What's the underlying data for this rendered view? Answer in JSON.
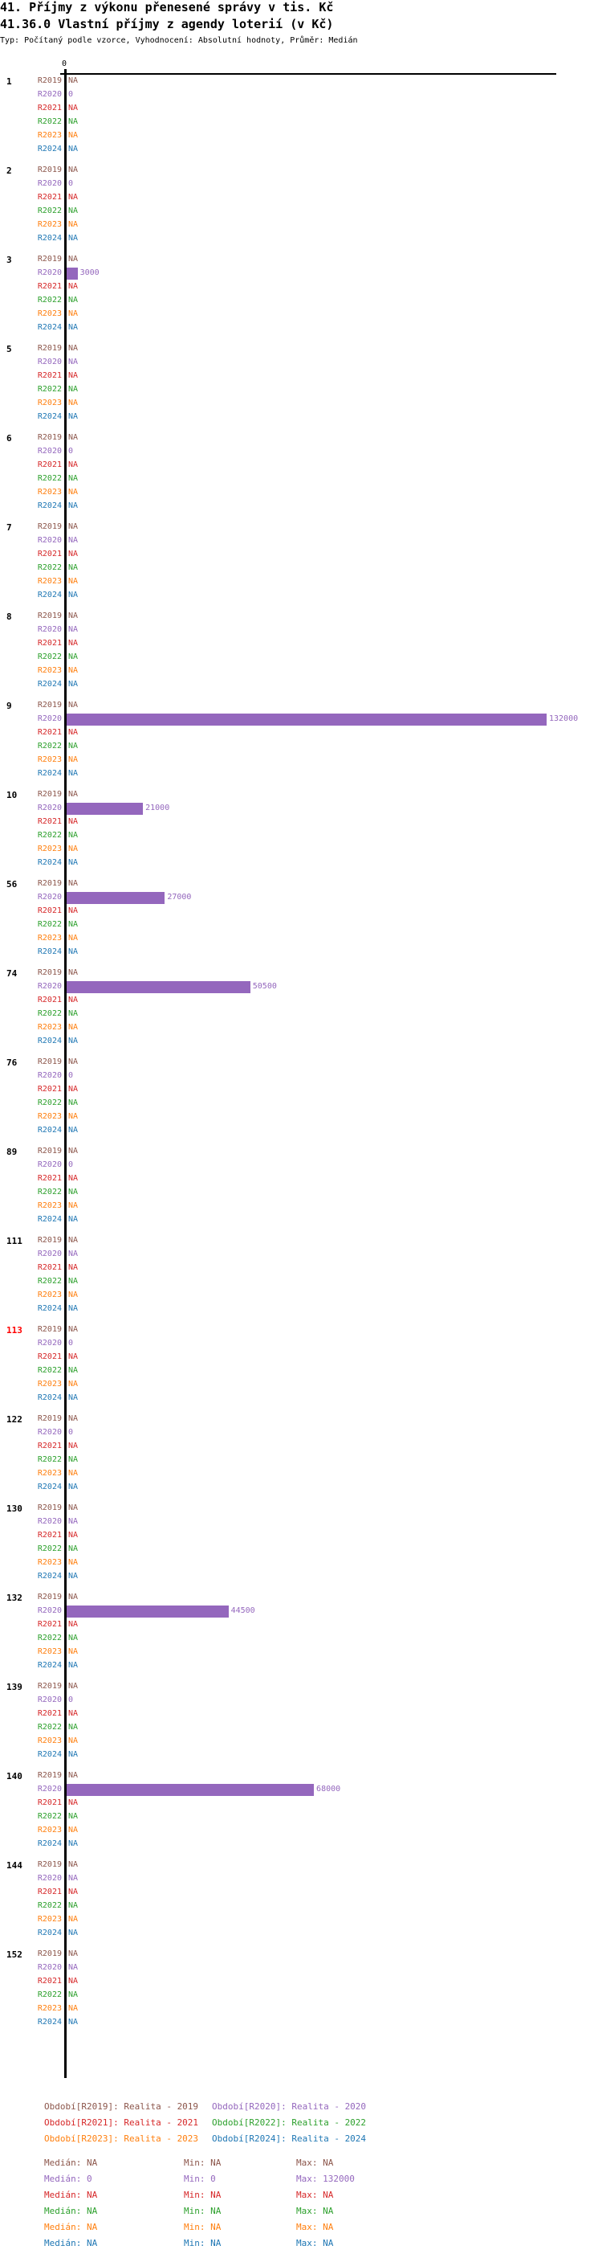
{
  "title": "41. Příjmy z výkonu přenesené správy v tis. Kč",
  "subtitle": "41.36.0 Vlastní příjmy z agendy loterií (v Kč)",
  "description": "Typ: Počítaný podle vzorce, Vyhodnocení: Absolutní hodnoty, Průměr: Medián",
  "chart_data": {
    "type": "bar",
    "orientation": "horizontal",
    "xlim": [
      0,
      132000
    ],
    "x_tick_labels": [
      "0"
    ],
    "series": [
      {
        "name": "R2019",
        "color": "#8c564b"
      },
      {
        "name": "R2020",
        "color": "#9467bd"
      },
      {
        "name": "R2021",
        "color": "#d62728"
      },
      {
        "name": "R2022",
        "color": "#2ca02c"
      },
      {
        "name": "R2023",
        "color": "#ff7f0e"
      },
      {
        "name": "R2024",
        "color": "#1f77b4"
      }
    ],
    "groups": [
      {
        "label": "1",
        "values": [
          "NA",
          "0",
          "NA",
          "NA",
          "NA",
          "NA"
        ]
      },
      {
        "label": "2",
        "values": [
          "NA",
          "0",
          "NA",
          "NA",
          "NA",
          "NA"
        ]
      },
      {
        "label": "3",
        "values": [
          "NA",
          "3000",
          "NA",
          "NA",
          "NA",
          "NA"
        ]
      },
      {
        "label": "5",
        "values": [
          "NA",
          "NA",
          "NA",
          "NA",
          "NA",
          "NA"
        ]
      },
      {
        "label": "6",
        "values": [
          "NA",
          "0",
          "NA",
          "NA",
          "NA",
          "NA"
        ]
      },
      {
        "label": "7",
        "values": [
          "NA",
          "NA",
          "NA",
          "NA",
          "NA",
          "NA"
        ]
      },
      {
        "label": "8",
        "values": [
          "NA",
          "NA",
          "NA",
          "NA",
          "NA",
          "NA"
        ]
      },
      {
        "label": "9",
        "values": [
          "NA",
          "132000",
          "NA",
          "NA",
          "NA",
          "NA"
        ]
      },
      {
        "label": "10",
        "values": [
          "NA",
          "21000",
          "NA",
          "NA",
          "NA",
          "NA"
        ]
      },
      {
        "label": "56",
        "values": [
          "NA",
          "27000",
          "NA",
          "NA",
          "NA",
          "NA"
        ]
      },
      {
        "label": "74",
        "values": [
          "NA",
          "50500",
          "NA",
          "NA",
          "NA",
          "NA"
        ]
      },
      {
        "label": "76",
        "values": [
          "NA",
          "0",
          "NA",
          "NA",
          "NA",
          "NA"
        ]
      },
      {
        "label": "89",
        "values": [
          "NA",
          "0",
          "NA",
          "NA",
          "NA",
          "NA"
        ]
      },
      {
        "label": "111",
        "values": [
          "NA",
          "NA",
          "NA",
          "NA",
          "NA",
          "NA"
        ]
      },
      {
        "label": "113",
        "values": [
          "NA",
          "0",
          "NA",
          "NA",
          "NA",
          "NA"
        ],
        "highlight": "#ff0000"
      },
      {
        "label": "122",
        "values": [
          "NA",
          "0",
          "NA",
          "NA",
          "NA",
          "NA"
        ]
      },
      {
        "label": "130",
        "values": [
          "NA",
          "NA",
          "NA",
          "NA",
          "NA",
          "NA"
        ]
      },
      {
        "label": "132",
        "values": [
          "NA",
          "44500",
          "NA",
          "NA",
          "NA",
          "NA"
        ]
      },
      {
        "label": "139",
        "values": [
          "NA",
          "0",
          "NA",
          "NA",
          "NA",
          "NA"
        ]
      },
      {
        "label": "140",
        "values": [
          "NA",
          "68000",
          "NA",
          "NA",
          "NA",
          "NA"
        ]
      },
      {
        "label": "144",
        "values": [
          "NA",
          "NA",
          "NA",
          "NA",
          "NA",
          "NA"
        ]
      },
      {
        "label": "152",
        "values": [
          "NA",
          "NA",
          "NA",
          "NA",
          "NA",
          "NA"
        ]
      }
    ]
  },
  "legend": [
    "Období[R2019]: Realita - 2019",
    "Období[R2020]: Realita - 2020",
    "Období[R2021]: Realita - 2021",
    "Období[R2022]: Realita - 2022",
    "Období[R2023]: Realita - 2023",
    "Období[R2024]: Realita - 2024"
  ],
  "stats": [
    {
      "median": "Medián: NA",
      "min": "Min: NA",
      "max": "Max: NA"
    },
    {
      "median": "Medián: 0",
      "min": "Min: 0",
      "max": "Max: 132000"
    },
    {
      "median": "Medián: NA",
      "min": "Min: NA",
      "max": "Max: NA"
    },
    {
      "median": "Medián: NA",
      "min": "Min: NA",
      "max": "Max: NA"
    },
    {
      "median": "Medián: NA",
      "min": "Min: NA",
      "max": "Max: NA"
    },
    {
      "median": "Medián: NA",
      "min": "Min: NA",
      "max": "Max: NA"
    }
  ]
}
